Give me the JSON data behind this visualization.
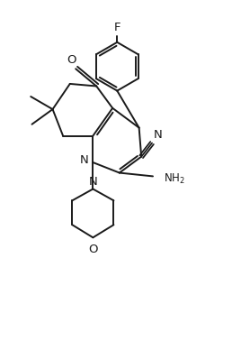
{
  "bg_color": "#ffffff",
  "line_color": "#1a1a1a",
  "line_width": 1.4,
  "font_size": 8.5,
  "fig_width": 2.58,
  "fig_height": 3.78,
  "dpi": 100,
  "xlim": [
    0,
    10
  ],
  "ylim": [
    0,
    14.7
  ]
}
